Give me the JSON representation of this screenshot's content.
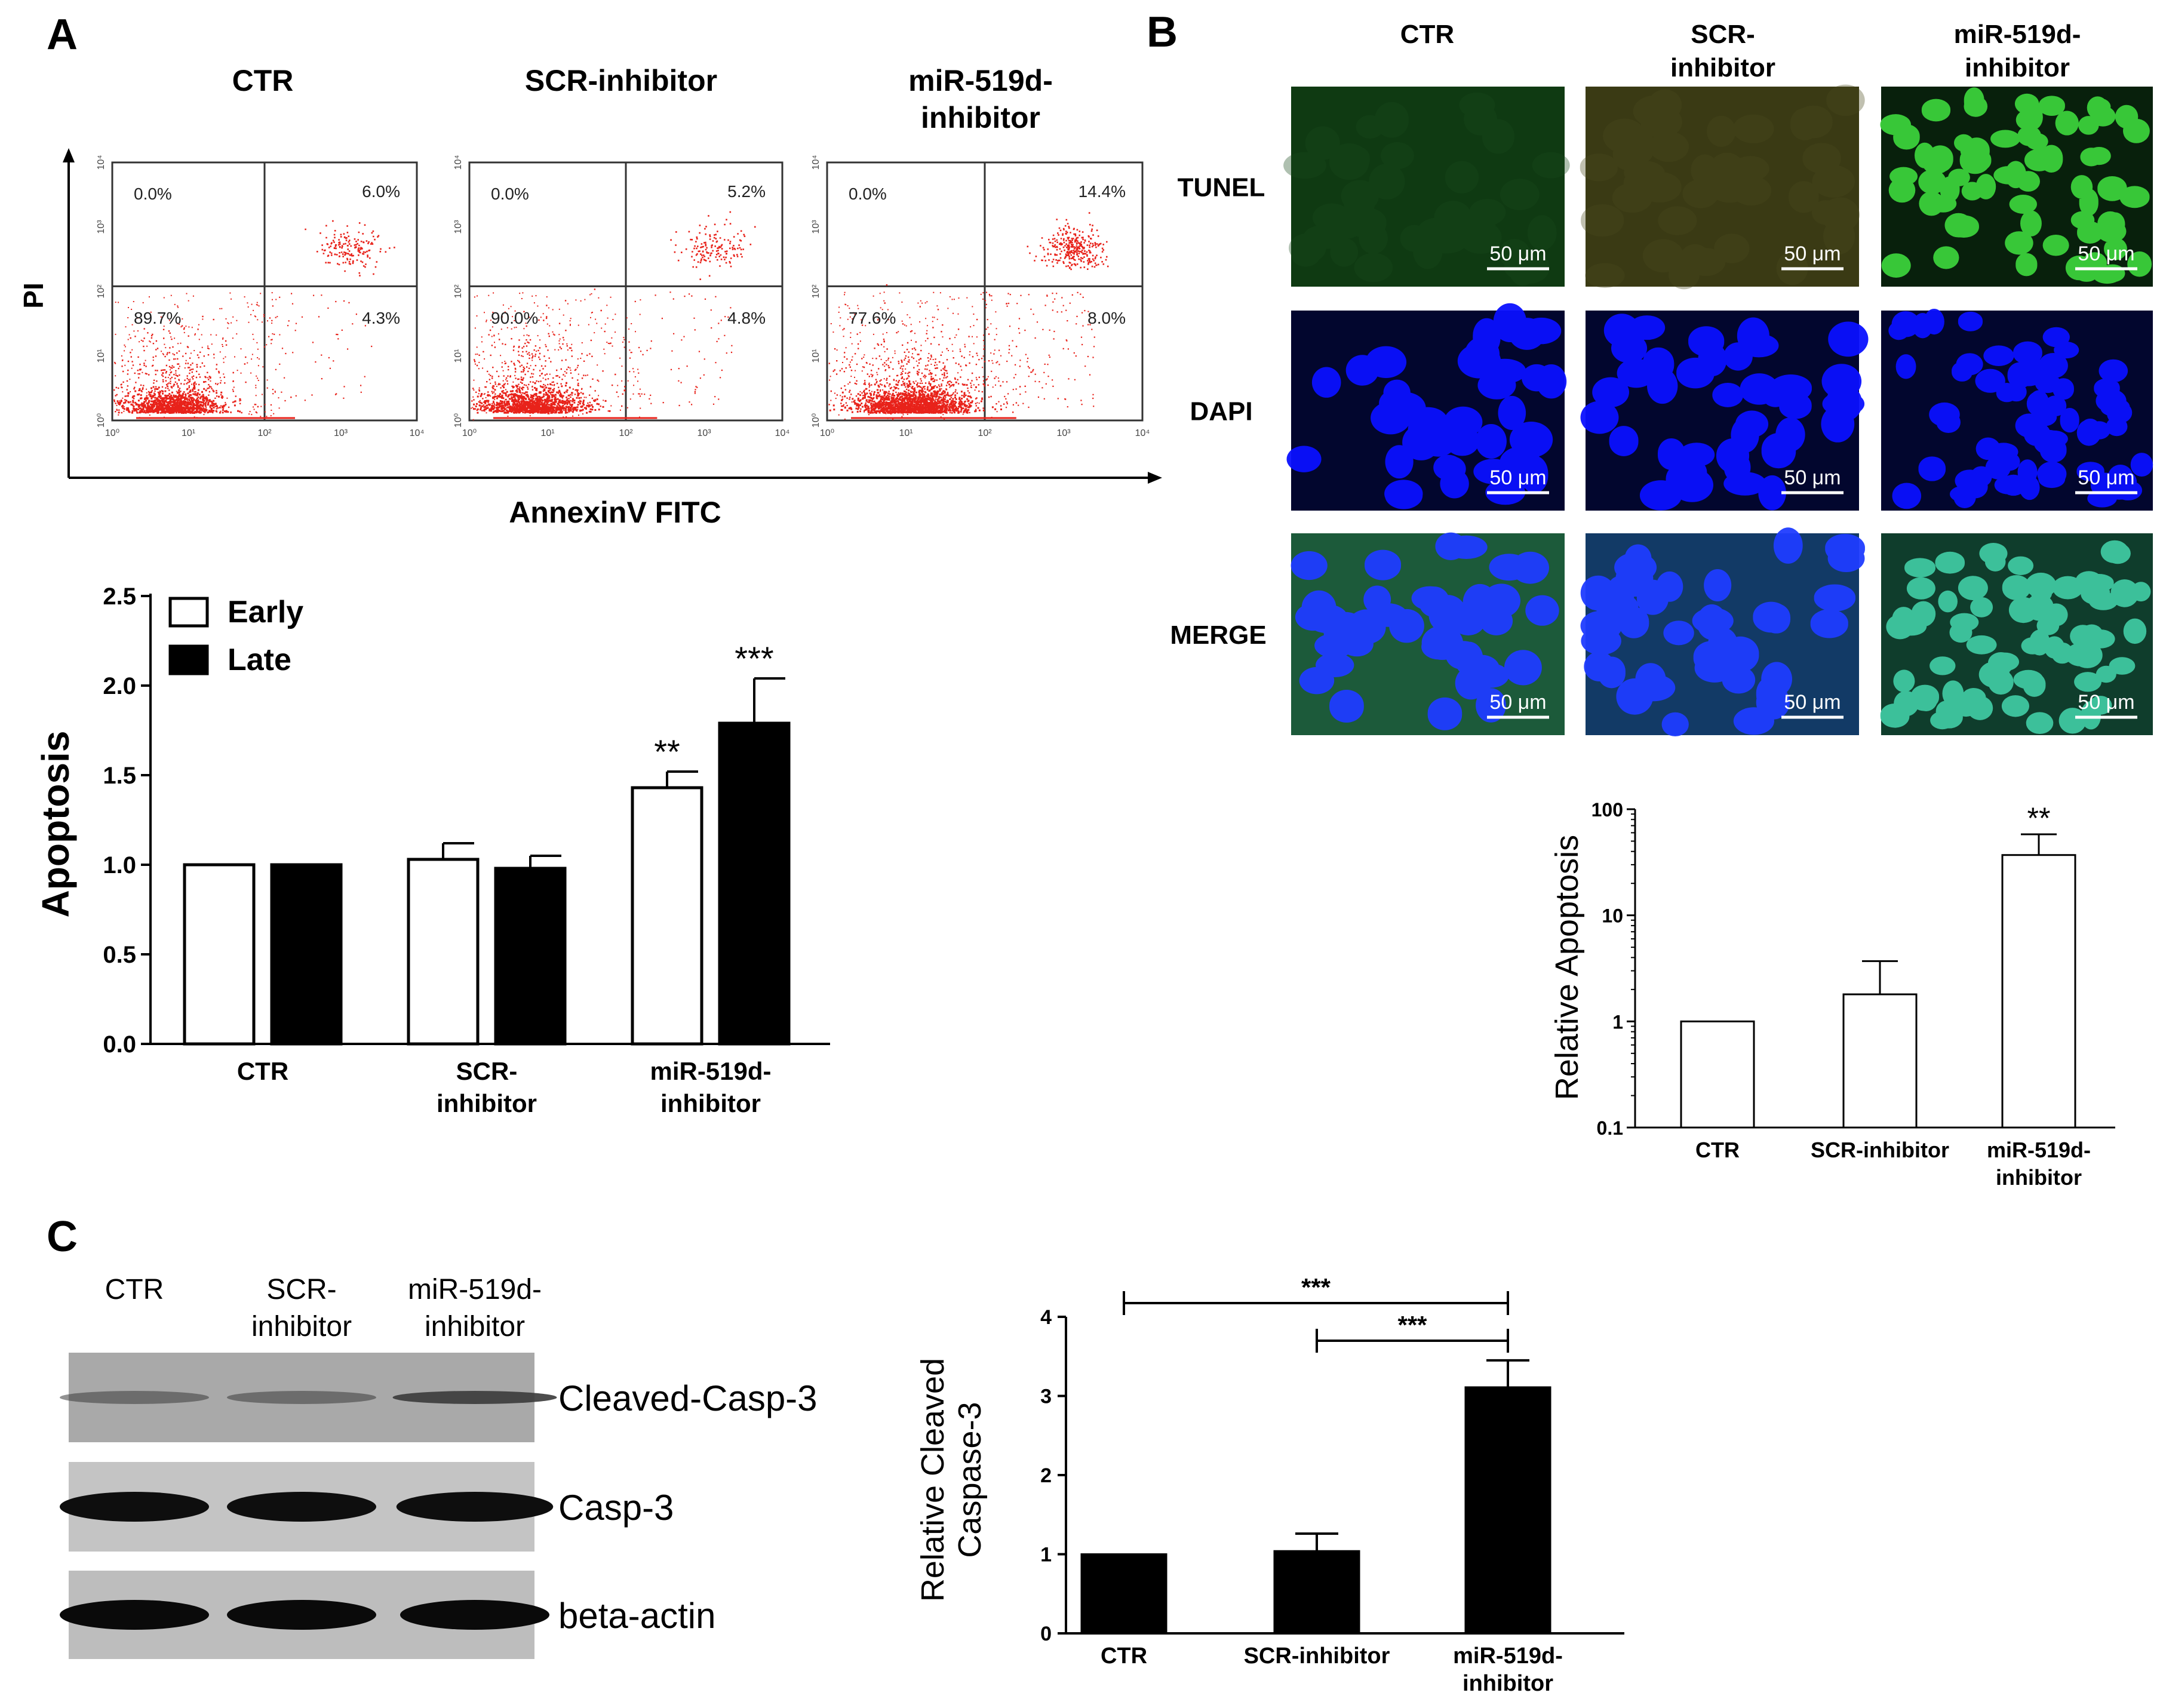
{
  "panel_letters": {
    "a": "A",
    "b": "B",
    "c": "C"
  },
  "flow": {
    "groups": [
      {
        "title": [
          "CTR"
        ],
        "ul": "0.0%",
        "ur": "6.0%",
        "ll": "89.7%",
        "lr": "4.3%"
      },
      {
        "title": [
          "SCR-inhibitor"
        ],
        "ul": "0.0%",
        "ur": "5.2%",
        "ll": "90.0%",
        "lr": "4.8%"
      },
      {
        "title": [
          "miR-519d-",
          "inhibitor"
        ],
        "ul": "0.0%",
        "ur": "14.4%",
        "ll": "77.6%",
        "lr": "8.0%"
      }
    ],
    "y_axis_label": "PI",
    "x_axis_label": "AnnexinV FITC",
    "tick_labels": [
      "10⁰",
      "10¹",
      "10²",
      "10³",
      "10⁴"
    ]
  },
  "microscopy": {
    "column_headers": [
      [
        "CTR"
      ],
      [
        "SCR-",
        "inhibitor"
      ],
      [
        "miR-519d-",
        "inhibitor"
      ]
    ],
    "row_labels": [
      "TUNEL",
      "DAPI",
      "MERGE"
    ],
    "scale_bar": "50 μm",
    "colors": {
      "tunel_bg": "#0f3a12",
      "tunel_scr_bg": "#3a3a14",
      "nucleus": "#0a10ff",
      "dapi_bg": "#02062e",
      "merge_bg": "#1c5a3a",
      "bright_green": "#3bd13b"
    }
  },
  "western": {
    "lane_labels": [
      [
        "CTR"
      ],
      [
        "SCR-",
        "inhibitor"
      ],
      [
        "miR-519d-",
        "inhibitor"
      ]
    ],
    "band_labels": [
      "Cleaved-Casp-3",
      "Casp-3",
      "beta-actin"
    ]
  },
  "chart_data": [
    {
      "id": "apoptosis",
      "type": "bar",
      "categories": [
        [
          "CTR"
        ],
        [
          "SCR-",
          "inhibitor"
        ],
        [
          "miR-519d-",
          "inhibitor"
        ]
      ],
      "series": [
        {
          "name": "Early",
          "values": [
            1.0,
            1.03,
            1.43
          ],
          "errors": [
            0.0,
            0.09,
            0.09
          ],
          "fill": "#ffffff"
        },
        {
          "name": "Late",
          "values": [
            1.0,
            0.98,
            1.79
          ],
          "errors": [
            0.0,
            0.07,
            0.25
          ],
          "fill": "#000000"
        }
      ],
      "significance": [
        {
          "category": 2,
          "series": 0,
          "label": "**"
        },
        {
          "category": 2,
          "series": 1,
          "label": "***"
        }
      ],
      "ylabel": "Apoptosis",
      "ylim": [
        0,
        2.5
      ],
      "yticks": [
        "0.0",
        "0.5",
        "1.0",
        "1.5",
        "2.0",
        "2.5"
      ],
      "legend_position": "top-left"
    },
    {
      "id": "relative_apoptosis",
      "type": "bar",
      "yscale": "log",
      "categories": [
        [
          "CTR"
        ],
        [
          "SCR-inhibitor"
        ],
        [
          "miR-519d-",
          "inhibitor"
        ]
      ],
      "values": [
        1.0,
        1.8,
        37
      ],
      "errors_upper": [
        1.0,
        3.7,
        58
      ],
      "significance": [
        {
          "category": 2,
          "label": "**"
        }
      ],
      "ylabel": "Relative Apoptosis",
      "ylim": [
        0.1,
        100
      ],
      "yticks": [
        "0.1",
        "1",
        "10",
        "100"
      ]
    },
    {
      "id": "cleaved_caspase",
      "type": "bar",
      "categories": [
        [
          "CTR"
        ],
        [
          "SCR-inhibitor"
        ],
        [
          "miR-519d-",
          "inhibitor"
        ]
      ],
      "values": [
        1.0,
        1.04,
        3.11
      ],
      "errors": [
        0.0,
        0.22,
        0.34
      ],
      "comparisons": [
        {
          "from": 0,
          "to": 2,
          "label": "***"
        },
        {
          "from": 1,
          "to": 2,
          "label": "***"
        }
      ],
      "ylabel": [
        "Relative Cleaved",
        "Caspase-3"
      ],
      "ylim": [
        0,
        4
      ],
      "yticks": [
        "0",
        "1",
        "2",
        "3",
        "4"
      ]
    }
  ]
}
